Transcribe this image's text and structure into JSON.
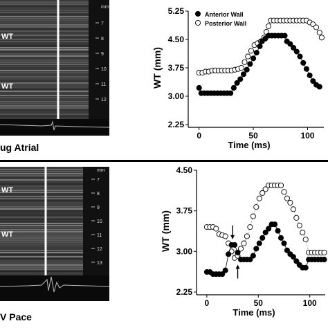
{
  "panels": [
    {
      "image": {
        "condition_label": "ug Atrial",
        "wall_labels": [
          "WT",
          "WT"
        ],
        "scale_unit": "mm",
        "scale_ticks": [
          "7",
          "8",
          "9",
          "10",
          "11",
          "12"
        ]
      },
      "chart_data": {
        "type": "scatter",
        "xlabel": "Time (ms)",
        "ylabel": "WT (mm)",
        "xlim": [
          -10,
          115
        ],
        "ylim": [
          2.25,
          5.25
        ],
        "x_ticks": [
          "0",
          "50",
          "100"
        ],
        "y_ticks": [
          "2.25",
          "3.00",
          "3.75",
          "4.50",
          "5.25"
        ],
        "legend_position": "top-left",
        "series": [
          {
            "name": "Anterior Wall",
            "marker": "filled-circle",
            "points": [
              [
                0,
                3.22
              ],
              [
                2,
                3.08
              ],
              [
                5,
                3.08
              ],
              [
                8,
                3.08
              ],
              [
                11,
                3.08
              ],
              [
                14,
                3.08
              ],
              [
                17,
                3.08
              ],
              [
                20,
                3.08
              ],
              [
                23,
                3.08
              ],
              [
                26,
                3.08
              ],
              [
                29,
                3.08
              ],
              [
                32,
                3.22
              ],
              [
                35,
                3.35
              ],
              [
                38,
                3.45
              ],
              [
                41,
                3.58
              ],
              [
                44,
                3.7
              ],
              [
                47,
                3.85
              ],
              [
                50,
                4.0
              ],
              [
                53,
                4.15
              ],
              [
                56,
                4.32
              ],
              [
                58,
                4.45
              ],
              [
                61,
                4.52
              ],
              [
                64,
                4.6
              ],
              [
                67,
                4.6
              ],
              [
                70,
                4.6
              ],
              [
                73,
                4.6
              ],
              [
                76,
                4.6
              ],
              [
                79,
                4.6
              ],
              [
                81,
                4.45
              ],
              [
                84,
                4.38
              ],
              [
                87,
                4.28
              ],
              [
                90,
                4.18
              ],
              [
                93,
                4.05
              ],
              [
                96,
                3.88
              ],
              [
                99,
                3.72
              ],
              [
                102,
                3.55
              ],
              [
                105,
                3.4
              ],
              [
                108,
                3.3
              ],
              [
                111,
                3.25
              ]
            ]
          },
          {
            "name": "Posterior Wall",
            "marker": "open-circle",
            "points": [
              [
                0,
                3.62
              ],
              [
                3,
                3.62
              ],
              [
                6,
                3.65
              ],
              [
                9,
                3.65
              ],
              [
                12,
                3.68
              ],
              [
                15,
                3.68
              ],
              [
                18,
                3.68
              ],
              [
                21,
                3.68
              ],
              [
                24,
                3.68
              ],
              [
                27,
                3.68
              ],
              [
                30,
                3.68
              ],
              [
                33,
                3.7
              ],
              [
                36,
                3.72
              ],
              [
                39,
                3.75
              ],
              [
                42,
                3.9
              ],
              [
                45,
                4.05
              ],
              [
                48,
                4.2
              ],
              [
                51,
                4.35
              ],
              [
                54,
                4.4
              ],
              [
                57,
                4.45
              ],
              [
                60,
                4.55
              ],
              [
                62,
                4.7
              ],
              [
                64,
                4.85
              ],
              [
                66,
                5.0
              ],
              [
                69,
                5.0
              ],
              [
                72,
                5.0
              ],
              [
                75,
                5.0
              ],
              [
                78,
                5.0
              ],
              [
                81,
                5.0
              ],
              [
                84,
                5.0
              ],
              [
                87,
                5.0
              ],
              [
                90,
                5.0
              ],
              [
                93,
                5.0
              ],
              [
                96,
                5.0
              ],
              [
                99,
                5.0
              ],
              [
                102,
                4.95
              ],
              [
                105,
                4.9
              ],
              [
                108,
                4.82
              ],
              [
                111,
                4.68
              ],
              [
                113,
                4.55
              ]
            ]
          }
        ]
      }
    },
    {
      "image": {
        "condition_label": "V Pace",
        "wall_labels": [
          "WT",
          "WT"
        ],
        "scale_unit": "mm",
        "scale_ticks": [
          "7",
          "8",
          "9",
          "10",
          "11",
          "12",
          "13"
        ]
      },
      "chart_data": {
        "type": "scatter",
        "xlabel": "Time (ms)",
        "ylabel": "WT (mm)",
        "xlim": [
          -10,
          115
        ],
        "ylim": [
          2.25,
          4.5
        ],
        "x_ticks": [
          "0",
          "50",
          "100"
        ],
        "y_ticks": [
          "2.25",
          "3.00",
          "3.75",
          "4.50"
        ],
        "series": [
          {
            "name": "Anterior Wall",
            "marker": "filled-circle",
            "points": [
              [
                0,
                2.62
              ],
              [
                3,
                2.62
              ],
              [
                6,
                2.58
              ],
              [
                9,
                2.58
              ],
              [
                12,
                2.58
              ],
              [
                15,
                2.58
              ],
              [
                18,
                2.65
              ],
              [
                21,
                2.95
              ],
              [
                24,
                3.12
              ],
              [
                27,
                3.12
              ],
              [
                30,
                2.98
              ],
              [
                33,
                2.85
              ],
              [
                36,
                2.85
              ],
              [
                39,
                2.85
              ],
              [
                42,
                2.85
              ],
              [
                45,
                2.92
              ],
              [
                48,
                3.05
              ],
              [
                51,
                3.15
              ],
              [
                54,
                3.25
              ],
              [
                57,
                3.35
              ],
              [
                60,
                3.42
              ],
              [
                63,
                3.5
              ],
              [
                66,
                3.5
              ],
              [
                69,
                3.38
              ],
              [
                72,
                3.25
              ],
              [
                75,
                3.15
              ],
              [
                78,
                3.02
              ],
              [
                81,
                2.95
              ],
              [
                84,
                2.9
              ],
              [
                87,
                2.82
              ],
              [
                90,
                2.75
              ],
              [
                93,
                2.7
              ],
              [
                96,
                2.7
              ],
              [
                99,
                2.85
              ],
              [
                102,
                2.85
              ],
              [
                105,
                2.85
              ],
              [
                108,
                2.85
              ],
              [
                111,
                2.85
              ],
              [
                114,
                2.85
              ]
            ]
          },
          {
            "name": "Posterior Wall",
            "marker": "open-circle",
            "points": [
              [
                0,
                3.45
              ],
              [
                3,
                3.45
              ],
              [
                6,
                3.45
              ],
              [
                9,
                3.42
              ],
              [
                12,
                3.32
              ],
              [
                15,
                3.3
              ],
              [
                18,
                3.28
              ],
              [
                21,
                3.15
              ],
              [
                24,
                3.0
              ],
              [
                27,
                2.88
              ],
              [
                30,
                2.92
              ],
              [
                33,
                3.05
              ],
              [
                36,
                3.15
              ],
              [
                39,
                3.28
              ],
              [
                42,
                3.45
              ],
              [
                45,
                3.65
              ],
              [
                48,
                3.82
              ],
              [
                51,
                3.98
              ],
              [
                54,
                4.08
              ],
              [
                57,
                4.15
              ],
              [
                60,
                4.22
              ],
              [
                63,
                4.22
              ],
              [
                66,
                4.22
              ],
              [
                69,
                4.22
              ],
              [
                72,
                4.22
              ],
              [
                75,
                4.1
              ],
              [
                78,
                3.98
              ],
              [
                81,
                3.9
              ],
              [
                84,
                3.78
              ],
              [
                87,
                3.62
              ],
              [
                90,
                3.48
              ],
              [
                93,
                3.35
              ],
              [
                96,
                3.22
              ],
              [
                99,
                2.98
              ],
              [
                102,
                2.98
              ],
              [
                105,
                2.98
              ],
              [
                108,
                2.98
              ],
              [
                111,
                2.98
              ],
              [
                114,
                2.98
              ]
            ]
          }
        ],
        "annotations": [
          {
            "type": "arrow-down",
            "x": 25,
            "y": 3.2
          },
          {
            "type": "arrow-up",
            "x": 30,
            "y": 2.78
          }
        ]
      }
    }
  ]
}
